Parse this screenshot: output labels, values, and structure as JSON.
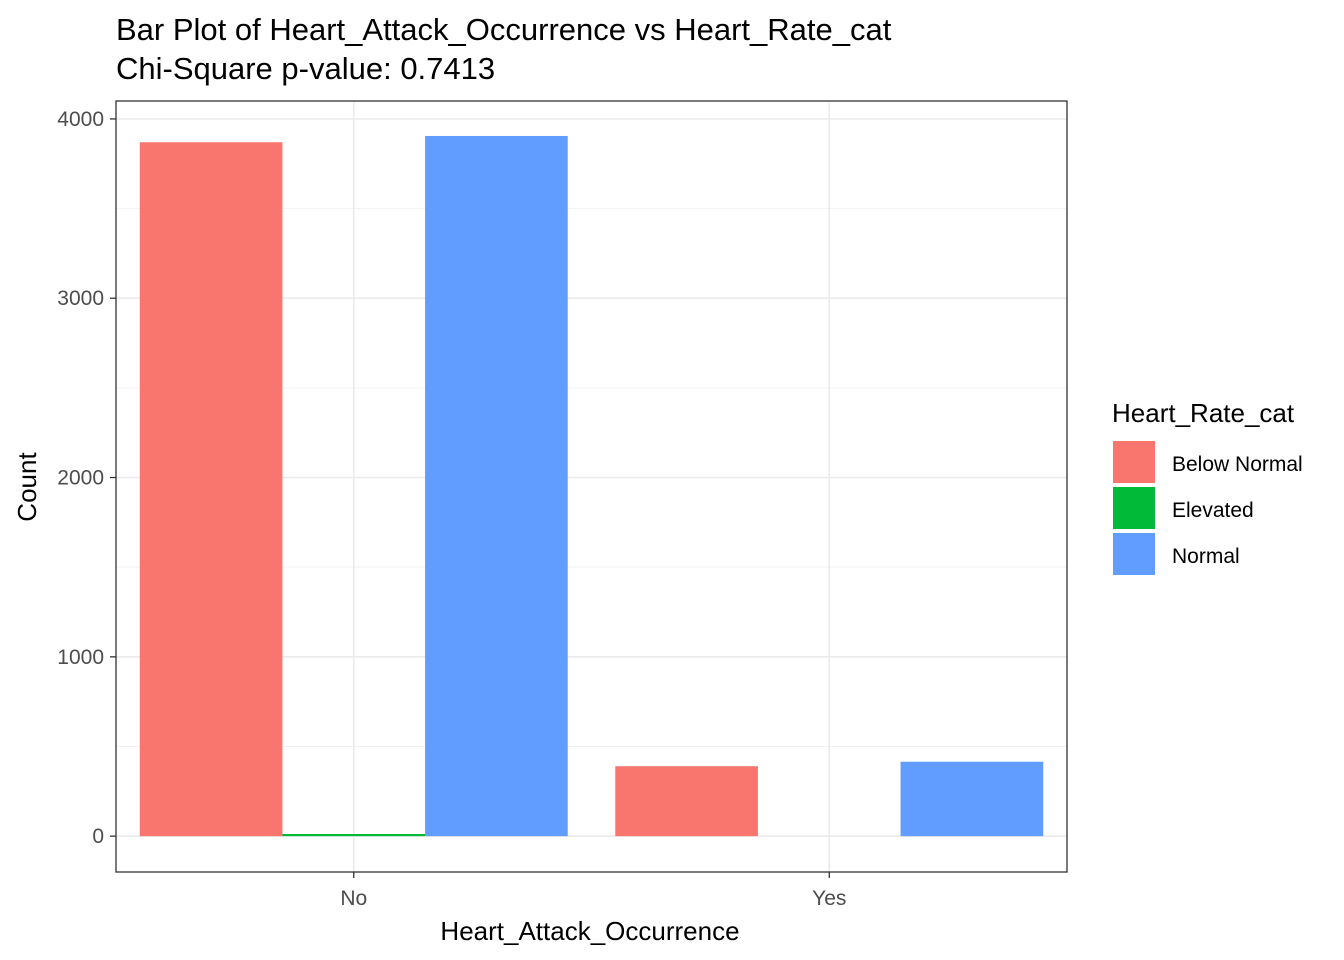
{
  "chart_data": {
    "type": "bar",
    "title": "Bar Plot of Heart_Attack_Occurrence vs Heart_Rate_cat",
    "subtitle": "Chi-Square p-value: 0.7413",
    "xlabel": "Heart_Attack_Occurrence",
    "ylabel": "Count",
    "categories": [
      "No",
      "Yes"
    ],
    "legend_title": "Heart_Rate_cat",
    "legend_position": "right",
    "grid": true,
    "ylim": [
      -200,
      4100
    ],
    "yticks": [
      0,
      1000,
      2000,
      3000,
      4000
    ],
    "ytick_labels": [
      "0",
      "1000",
      "2000",
      "3000",
      "4000"
    ],
    "series": [
      {
        "name": "Below Normal",
        "color": "#F8766D",
        "values": [
          3870,
          390
        ]
      },
      {
        "name": "Elevated",
        "color": "#00BA38",
        "values": [
          12,
          0
        ]
      },
      {
        "name": "Normal",
        "color": "#619CFF",
        "values": [
          3905,
          415
        ]
      }
    ]
  }
}
